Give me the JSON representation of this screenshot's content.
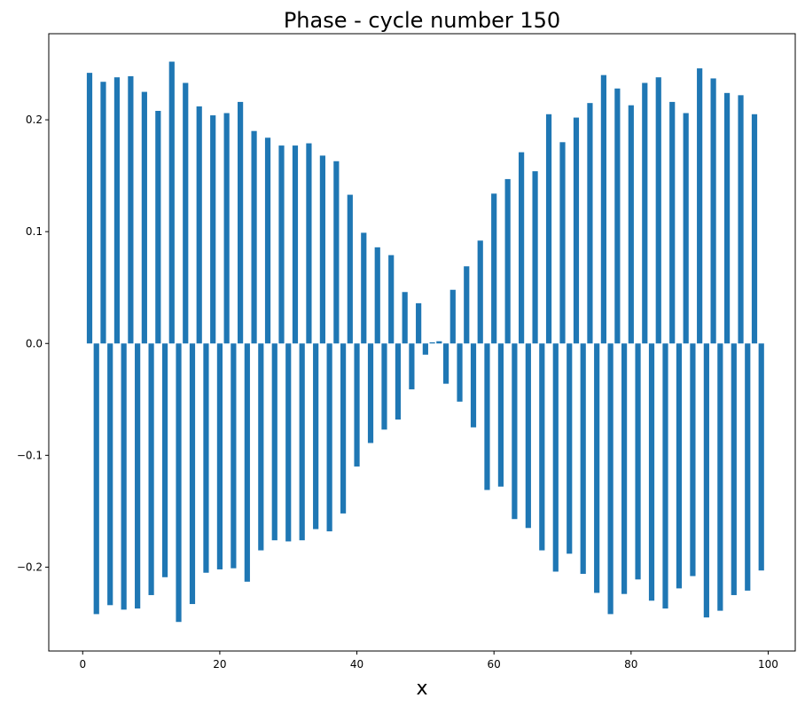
{
  "chart_data": {
    "type": "bar",
    "title": "Phase - cycle number 150",
    "xlabel": "x",
    "ylabel": "",
    "xlim": [
      -4.95,
      103.95
    ],
    "ylim": [
      -0.275,
      0.277
    ],
    "xticks": [
      0,
      20,
      40,
      60,
      80,
      100
    ],
    "xtick_labels": [
      "0",
      "20",
      "40",
      "60",
      "80",
      "100"
    ],
    "yticks": [
      -0.2,
      -0.1,
      0.0,
      0.1,
      0.2
    ],
    "ytick_labels": [
      "−0.2",
      "−0.1",
      "0.0",
      "0.1",
      "0.2"
    ],
    "bar_color": "#1f77b4",
    "grid": false,
    "legend": false,
    "x": [
      1,
      2,
      3,
      4,
      5,
      6,
      7,
      8,
      9,
      10,
      11,
      12,
      13,
      14,
      15,
      16,
      17,
      18,
      19,
      20,
      21,
      22,
      23,
      24,
      25,
      26,
      27,
      28,
      29,
      30,
      31,
      32,
      33,
      34,
      35,
      36,
      37,
      38,
      39,
      40,
      41,
      42,
      43,
      44,
      45,
      46,
      47,
      48,
      49,
      50,
      51,
      52,
      53,
      54,
      55,
      56,
      57,
      58,
      59,
      60,
      61,
      62,
      63,
      64,
      65,
      66,
      67,
      68,
      69,
      70,
      71,
      72,
      73,
      74,
      75,
      76,
      77,
      78,
      79,
      80,
      81,
      82,
      83,
      84,
      85,
      86,
      87,
      88,
      89,
      90,
      91,
      92,
      93,
      94,
      95,
      96,
      97,
      98,
      99
    ],
    "values": [
      0.242,
      -0.242,
      0.234,
      -0.234,
      0.238,
      -0.238,
      0.239,
      -0.237,
      0.225,
      -0.225,
      0.208,
      -0.209,
      0.252,
      -0.249,
      0.233,
      -0.233,
      0.212,
      -0.205,
      0.204,
      -0.202,
      0.206,
      -0.201,
      0.216,
      -0.213,
      0.19,
      -0.185,
      0.184,
      -0.176,
      0.177,
      -0.177,
      0.177,
      -0.176,
      0.179,
      -0.166,
      0.168,
      -0.168,
      0.163,
      -0.152,
      0.133,
      -0.11,
      0.099,
      -0.089,
      0.086,
      -0.077,
      0.079,
      -0.068,
      0.046,
      -0.041,
      0.036,
      -0.01,
      0.001,
      0.002,
      -0.036,
      0.048,
      -0.052,
      0.069,
      -0.075,
      0.092,
      -0.131,
      0.134,
      -0.128,
      0.147,
      -0.157,
      0.171,
      -0.165,
      0.154,
      -0.185,
      0.205,
      -0.204,
      0.18,
      -0.188,
      0.202,
      -0.206,
      0.215,
      -0.223,
      0.24,
      -0.242,
      0.228,
      -0.224,
      0.213,
      -0.211,
      0.233,
      -0.23,
      0.238,
      -0.237,
      0.216,
      -0.219,
      0.206,
      -0.208,
      0.246,
      -0.245,
      0.237,
      -0.239,
      0.224,
      -0.225,
      0.222,
      -0.221,
      0.205,
      -0.203
    ]
  }
}
